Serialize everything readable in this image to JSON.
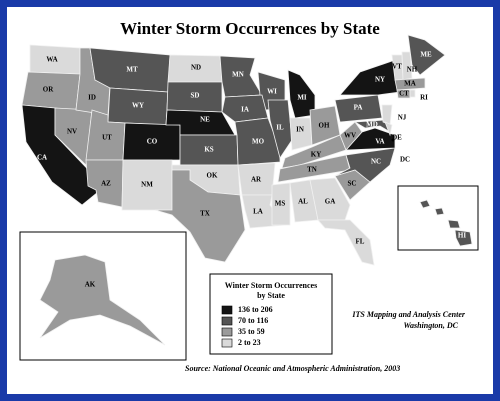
{
  "title": "Winter Storm Occurrences by State",
  "states": [
    {
      "label": "WA",
      "class": 3
    },
    {
      "label": "OR",
      "class": 2
    },
    {
      "label": "CA",
      "class": 0
    },
    {
      "label": "NV",
      "class": 2
    },
    {
      "label": "ID",
      "class": 2
    },
    {
      "label": "MT",
      "class": 1
    },
    {
      "label": "WY",
      "class": 1
    },
    {
      "label": "UT",
      "class": 2
    },
    {
      "label": "AZ",
      "class": 2
    },
    {
      "label": "CO",
      "class": 0
    },
    {
      "label": "NM",
      "class": 3
    },
    {
      "label": "ND",
      "class": 3
    },
    {
      "label": "SD",
      "class": 1
    },
    {
      "label": "NE",
      "class": 0
    },
    {
      "label": "KS",
      "class": 1
    },
    {
      "label": "OK",
      "class": 3
    },
    {
      "label": "TX",
      "class": 2
    },
    {
      "label": "MN",
      "class": 1
    },
    {
      "label": "WI",
      "class": 1
    },
    {
      "label": "IA",
      "class": 1
    },
    {
      "label": "MO",
      "class": 1
    },
    {
      "label": "AR",
      "class": 3
    },
    {
      "label": "LA",
      "class": 3
    },
    {
      "label": "IL",
      "class": 1
    },
    {
      "label": "MI",
      "class": 0
    },
    {
      "label": "IN",
      "class": 3
    },
    {
      "label": "OH",
      "class": 2
    },
    {
      "label": "KY",
      "class": 2
    },
    {
      "label": "TN",
      "class": 2
    },
    {
      "label": "MS",
      "class": 3
    },
    {
      "label": "AL",
      "class": 3
    },
    {
      "label": "GA",
      "class": 3
    },
    {
      "label": "FL",
      "class": 3
    },
    {
      "label": "SC",
      "class": 2
    },
    {
      "label": "NC",
      "class": 1
    },
    {
      "label": "VA",
      "class": 0
    },
    {
      "label": "WV",
      "class": 2
    },
    {
      "label": "MD",
      "class": 1
    },
    {
      "label": "PA",
      "class": 1
    },
    {
      "label": "NY",
      "class": 0
    },
    {
      "label": "NJ",
      "class": 3
    },
    {
      "label": "DE",
      "class": 3
    },
    {
      "label": "VT",
      "class": 3
    },
    {
      "label": "NH",
      "class": 3
    },
    {
      "label": "ME",
      "class": 1
    },
    {
      "label": "MA",
      "class": 2
    },
    {
      "label": "CT",
      "class": 2
    },
    {
      "label": "RI",
      "class": 3
    },
    {
      "label": "AK",
      "class": 2
    },
    {
      "label": "HI",
      "class": 1
    }
  ],
  "other_labels": [
    "DC"
  ],
  "legend": {
    "title": "Winter Storm Occurrences",
    "subtitle": "by State",
    "classes": [
      {
        "label": "136 to 206",
        "color": "#141414"
      },
      {
        "label": "70 to 116",
        "color": "#555555"
      },
      {
        "label": "35 to 59",
        "color": "#9a9a9a"
      },
      {
        "label": "2 to 23",
        "color": "#dadada"
      }
    ]
  },
  "credits": [
    "ITS Mapping and Analysis Center",
    "Washington, DC"
  ],
  "source": "Source: National Oceanic and Atmospheric Administration, 2003"
}
